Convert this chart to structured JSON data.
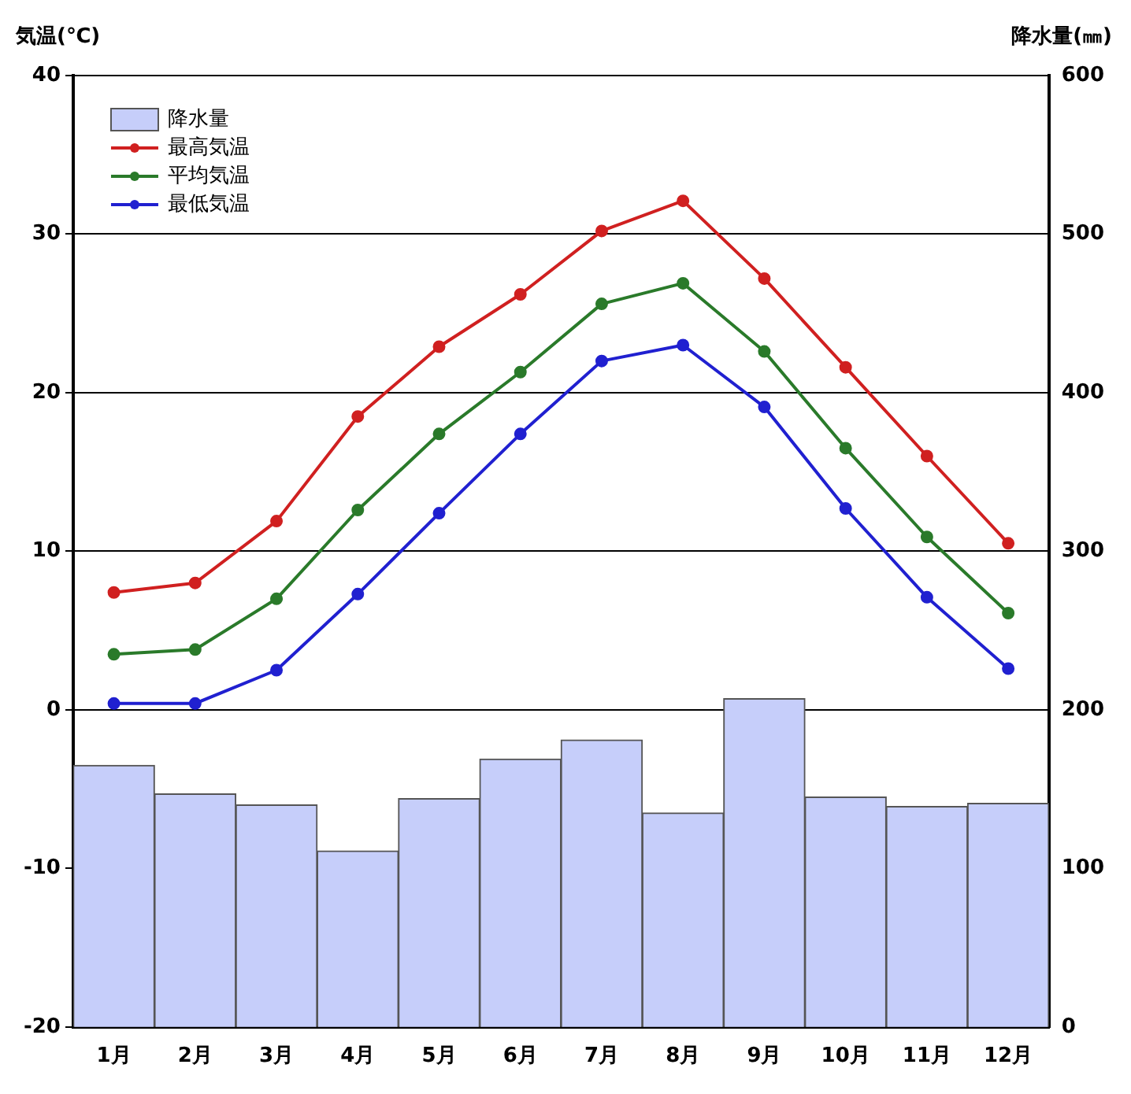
{
  "chart_data": {
    "type": "line",
    "ylabel": "気温(℃)",
    "y2label": "降水量(㎜)",
    "categories": [
      "1月",
      "2月",
      "3月",
      "4月",
      "5月",
      "6月",
      "7月",
      "8月",
      "9月",
      "10月",
      "11月",
      "12月"
    ],
    "series": [
      {
        "name": "降水量",
        "type": "bar",
        "axis": "y2",
        "color": "#c6cefa",
        "values": [
          165,
          147,
          140,
          111,
          144,
          169,
          181,
          135,
          207,
          145,
          139,
          141
        ]
      },
      {
        "name": "最高気温",
        "color": "#d02020",
        "values": [
          7.4,
          8.0,
          11.9,
          18.5,
          22.9,
          26.2,
          30.2,
          32.1,
          27.2,
          21.6,
          16.0,
          10.5
        ]
      },
      {
        "name": "平均気温",
        "color": "#2a7a2a",
        "values": [
          3.5,
          3.8,
          7.0,
          12.6,
          17.4,
          21.3,
          25.6,
          26.9,
          22.6,
          16.5,
          10.9,
          6.1
        ]
      },
      {
        "name": "最低気温",
        "color": "#2020d0",
        "values": [
          0.4,
          0.4,
          2.5,
          7.3,
          12.4,
          17.4,
          22.0,
          23.0,
          19.1,
          12.7,
          7.1,
          2.6
        ]
      }
    ],
    "ylim": [
      -20,
      40
    ],
    "yticks": [
      -20,
      -10,
      0,
      10,
      20,
      30,
      40
    ],
    "y2lim": [
      0,
      600
    ],
    "y2ticks": [
      0,
      100,
      200,
      300,
      400,
      500,
      600
    ],
    "grid": "y",
    "legend": "top left",
    "marker": "circle"
  }
}
